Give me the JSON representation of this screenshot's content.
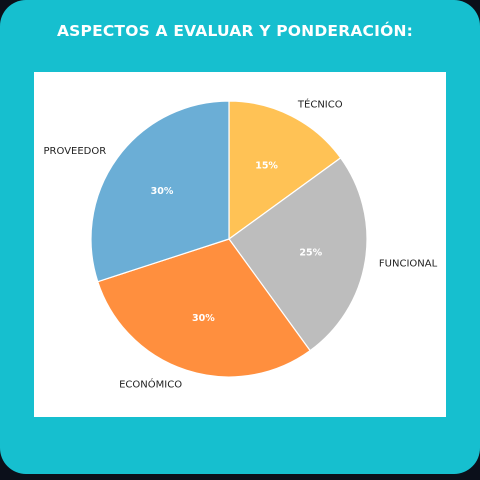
{
  "header": {
    "title": "ASPECTOS A EVALUAR Y PONDERACIÓN:"
  },
  "chart_data": {
    "type": "pie",
    "title": "",
    "categories": [
      "TÉCNICO",
      "FUNCIONAL",
      "ECONÓMICO",
      "PROVEEDOR"
    ],
    "values": [
      15,
      25,
      30,
      30
    ],
    "labels": [
      "15%",
      "25%",
      "30%",
      "30%"
    ],
    "colors": [
      "#ffc255",
      "#bdbdbd",
      "#ff8f3e",
      "#6baed6"
    ],
    "start_angle_deg": 90,
    "direction": "clockwise"
  },
  "colors": {
    "background": "#16bfcf",
    "panel": "#ffffff",
    "title": "#ffffff"
  }
}
